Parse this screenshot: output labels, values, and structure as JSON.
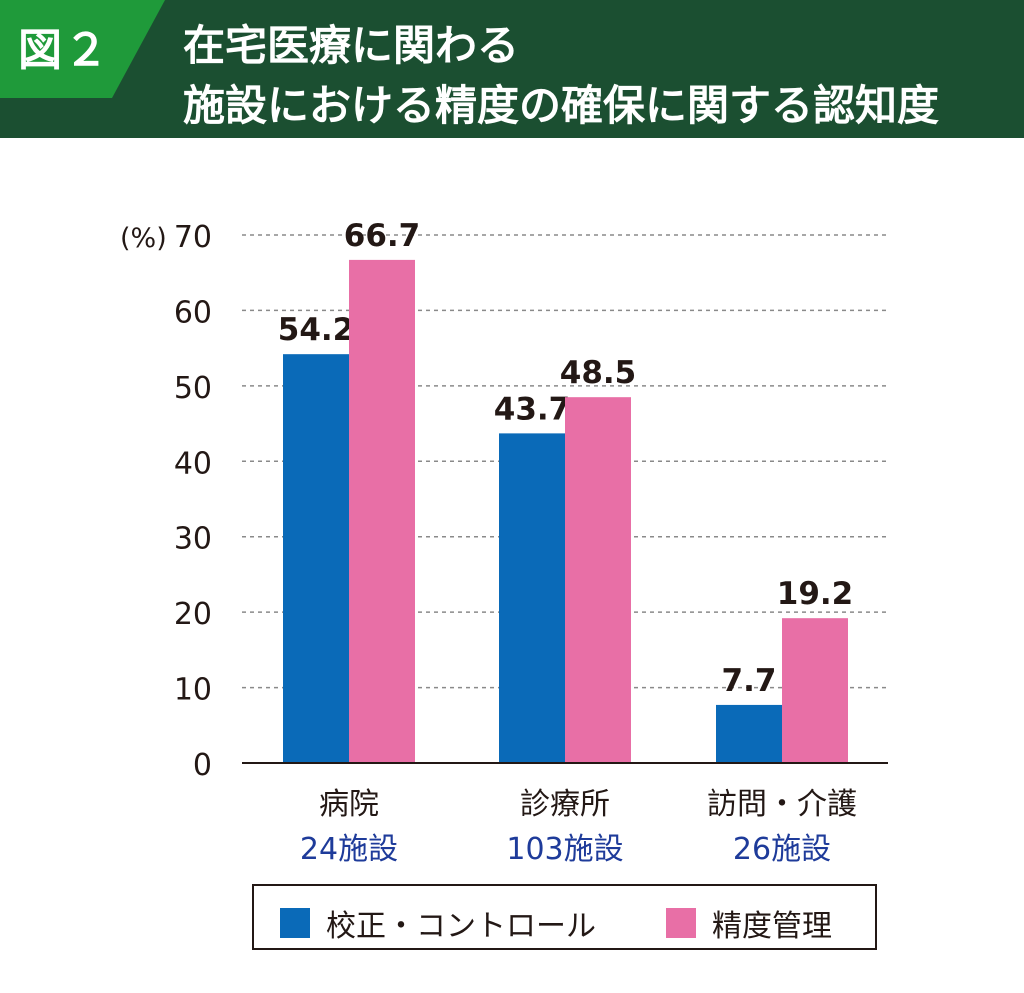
{
  "header": {
    "badge": "図２",
    "title_line1": "在宅医療に関わる",
    "title_line2": "施設における精度の確保に関する認知度"
  },
  "colors": {
    "header_bg": "#1b4f31",
    "badge_bg": "#1f9a3a",
    "series_blue": "#0a6ab8",
    "series_pink": "#e86fa6",
    "facility_text": "#1e3b9a"
  },
  "chart_data": {
    "type": "bar",
    "unit_label": "(%)",
    "ylim": [
      0,
      70
    ],
    "yticks": [
      0,
      10,
      20,
      30,
      40,
      50,
      60,
      70
    ],
    "grid": true,
    "categories": [
      {
        "name": "病院",
        "facilities": "24施設"
      },
      {
        "name": "診療所",
        "facilities": "103施設"
      },
      {
        "name": "訪問・介護",
        "facilities": "26施設"
      }
    ],
    "series": [
      {
        "name": "校正・コントロール",
        "color": "#0a6ab8",
        "values": [
          54.2,
          43.7,
          7.7
        ]
      },
      {
        "name": "精度管理",
        "color": "#e86fa6",
        "values": [
          66.7,
          48.5,
          19.2
        ]
      }
    ],
    "legend_position": "bottom"
  }
}
